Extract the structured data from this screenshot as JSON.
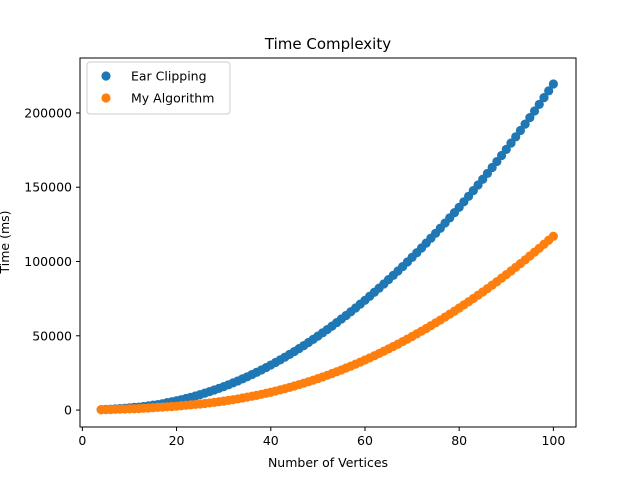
{
  "chart_data": {
    "type": "scatter",
    "title": "Time Complexity",
    "xlabel": "Number of Vertices",
    "ylabel": "Time (ms)",
    "xlim": [
      -0.5,
      104.8
    ],
    "ylim": [
      -11400,
      237000
    ],
    "xticks": [
      0,
      20,
      40,
      60,
      80,
      100
    ],
    "yticks": [
      0,
      50000,
      100000,
      150000,
      200000
    ],
    "grid": false,
    "legend_position": "top-left",
    "series": [
      {
        "name": "Ear Clipping",
        "color": "#1f77b4",
        "x": [
          4,
          5,
          6,
          7,
          8,
          9,
          10,
          11,
          12,
          13,
          14,
          15,
          16,
          17,
          18,
          19,
          20,
          21,
          22,
          23,
          24,
          25,
          26,
          27,
          28,
          29,
          30,
          31,
          32,
          33,
          34,
          35,
          36,
          37,
          38,
          39,
          40,
          41,
          42,
          43,
          44,
          45,
          46,
          47,
          48,
          49,
          50,
          51,
          52,
          53,
          54,
          55,
          56,
          57,
          58,
          59,
          60,
          61,
          62,
          63,
          64,
          65,
          66,
          67,
          68,
          69,
          70,
          71,
          72,
          73,
          74,
          75,
          76,
          77,
          78,
          79,
          80,
          81,
          82,
          83,
          84,
          85,
          86,
          87,
          88,
          89,
          90,
          91,
          92,
          93,
          94,
          95,
          96,
          97,
          98,
          99,
          100
        ],
        "y": [
          300,
          500,
          600,
          800,
          1000,
          1200,
          1500,
          1800,
          2000,
          2400,
          2800,
          3300,
          3700,
          4300,
          5000,
          5600,
          6300,
          7000,
          7800,
          8600,
          9500,
          10400,
          11400,
          12400,
          13500,
          14600,
          15800,
          17000,
          18300,
          19600,
          21000,
          22400,
          23900,
          25400,
          27000,
          28600,
          30300,
          32000,
          33800,
          35600,
          37500,
          39400,
          41400,
          43400,
          45500,
          47600,
          49800,
          52000,
          54200,
          56500,
          58900,
          61300,
          63700,
          66200,
          68700,
          71300,
          73900,
          76600,
          79300,
          82100,
          84900,
          87800,
          90700,
          93600,
          96600,
          99700,
          102800,
          105900,
          109100,
          112400,
          115700,
          119000,
          122400,
          125900,
          129400,
          132900,
          136500,
          140200,
          143900,
          147700,
          151500,
          155400,
          159300,
          163300,
          167300,
          171400,
          175500,
          179700,
          183900,
          188200,
          192500,
          196900,
          201300,
          205800,
          210300,
          214900,
          219500
        ]
      },
      {
        "name": "My Algorithm",
        "color": "#ff7f0e",
        "x": [
          4,
          5,
          6,
          7,
          8,
          9,
          10,
          11,
          12,
          13,
          14,
          15,
          16,
          17,
          18,
          19,
          20,
          21,
          22,
          23,
          24,
          25,
          26,
          27,
          28,
          29,
          30,
          31,
          32,
          33,
          34,
          35,
          36,
          37,
          38,
          39,
          40,
          41,
          42,
          43,
          44,
          45,
          46,
          47,
          48,
          49,
          50,
          51,
          52,
          53,
          54,
          55,
          56,
          57,
          58,
          59,
          60,
          61,
          62,
          63,
          64,
          65,
          66,
          67,
          68,
          69,
          70,
          71,
          72,
          73,
          74,
          75,
          76,
          77,
          78,
          79,
          80,
          81,
          82,
          83,
          84,
          85,
          86,
          87,
          88,
          89,
          90,
          91,
          92,
          93,
          94,
          95,
          96,
          97,
          98,
          99,
          100
        ],
        "y": [
          200,
          300,
          400,
          500,
          600,
          700,
          800,
          900,
          1000,
          1200,
          1400,
          1600,
          1800,
          2000,
          2200,
          2400,
          2600,
          2900,
          3200,
          3500,
          3800,
          4100,
          4400,
          4800,
          5200,
          5600,
          6000,
          6500,
          7000,
          7500,
          8100,
          8700,
          9300,
          9900,
          10600,
          11300,
          12000,
          12800,
          13600,
          14400,
          15300,
          16200,
          17100,
          18100,
          19100,
          20100,
          21200,
          22300,
          23400,
          24600,
          25800,
          27000,
          28300,
          29600,
          30900,
          32300,
          33700,
          35100,
          36600,
          38100,
          39600,
          41200,
          42800,
          44400,
          46100,
          47800,
          49500,
          51300,
          53100,
          54900,
          56800,
          58700,
          60600,
          62600,
          64600,
          66600,
          68700,
          70800,
          72900,
          75100,
          77300,
          79500,
          81800,
          84100,
          86400,
          88800,
          91200,
          93600,
          96100,
          98600,
          101100,
          103700,
          106300,
          108900,
          111600,
          114300,
          117000
        ]
      }
    ]
  }
}
